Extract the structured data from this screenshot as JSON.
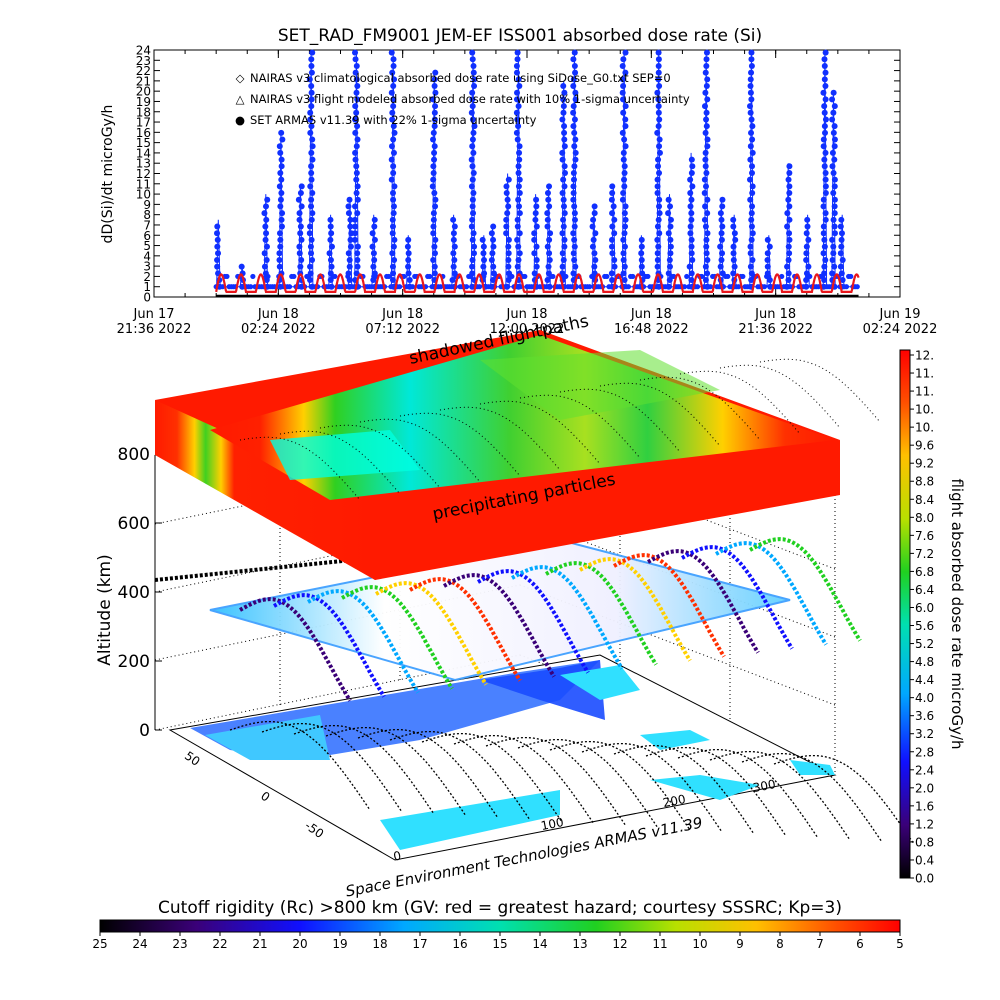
{
  "title": "SET_RAD_FM9001  JEM-EF ISS001 absorbed dose rate (Si)",
  "top_chart": {
    "ylabel": "dD(Si)/dt microGy/h",
    "yticks": [
      "0",
      "1",
      "2",
      "3",
      "4",
      "5",
      "6",
      "7",
      "8",
      "9",
      "10",
      "11",
      "12",
      "13",
      "14",
      "15",
      "16",
      "17",
      "18",
      "19",
      "20",
      "21",
      "22",
      "23",
      "24"
    ],
    "xtick_top": [
      "Jun 17",
      "Jun 18",
      "Jun 18",
      "Jun 18",
      "Jun 18",
      "Jun 18",
      "Jun 19"
    ],
    "xtick_bottom": [
      "21:36 2022",
      "02:24 2022",
      "07:12 2022",
      "12:00 2022",
      "16:48 2022",
      "21:36 2022",
      "02:24 2022"
    ],
    "legend": [
      {
        "symbol": "◇",
        "color": "#e8161c",
        "label": "NAIRAS v3 climatological absorbed dose rate using SiDose_G0.txt SEP=0"
      },
      {
        "symbol": "△",
        "color": "#000000",
        "label": "NAIRAS v3 flight modeled absorbed dose rate with 10% 1-sigma uncertainty"
      },
      {
        "symbol": "●",
        "color": "#1030ff",
        "label": "SET ARMAS v11.39 with 22% 1-sigma uncertainty"
      }
    ]
  },
  "chart_data": [
    {
      "type": "line",
      "title": "SET_RAD_FM9001  JEM-EF ISS001 absorbed dose rate (Si)",
      "xlabel": "",
      "ylabel": "dD(Si)/dt microGy/h",
      "xlim": [
        "2022-06-17 21:36",
        "2022-06-19 02:24"
      ],
      "ylim": [
        0,
        24
      ],
      "grid": false,
      "legend_position": "top-left",
      "x_data_start": "2022-06-18 00:00",
      "x_data_end": "2022-06-19 00:48",
      "series": [
        {
          "name": "SET ARMAS v11.39 with 22% 1-sigma uncertainty",
          "color": "#1030ff",
          "marker": "circle",
          "baseline": 1,
          "peaks": [
            {
              "t": "2022-06-18 00:05",
              "v": 7.5
            },
            {
              "t": "2022-06-18 01:00",
              "v": 3
            },
            {
              "t": "2022-06-18 01:55",
              "v": 10
            },
            {
              "t": "2022-06-18 02:30",
              "v": 16
            },
            {
              "t": "2022-06-18 03:15",
              "v": 11
            },
            {
              "t": "2022-06-18 03:40",
              "v": 24
            },
            {
              "t": "2022-06-18 04:25",
              "v": 8
            },
            {
              "t": "2022-06-18 05:10",
              "v": 9.5
            },
            {
              "t": "2022-06-18 05:25",
              "v": 24
            },
            {
              "t": "2022-06-18 06:05",
              "v": 8
            },
            {
              "t": "2022-06-18 06:50",
              "v": 24
            },
            {
              "t": "2022-06-18 07:25",
              "v": 6
            },
            {
              "t": "2022-06-18 08:25",
              "v": 22
            },
            {
              "t": "2022-06-18 09:10",
              "v": 8
            },
            {
              "t": "2022-06-18 09:55",
              "v": 24
            },
            {
              "t": "2022-06-18 10:20",
              "v": 6
            },
            {
              "t": "2022-06-18 10:40",
              "v": 7
            },
            {
              "t": "2022-06-18 11:15",
              "v": 12
            },
            {
              "t": "2022-06-18 11:40",
              "v": 24
            },
            {
              "t": "2022-06-18 12:20",
              "v": 10
            },
            {
              "t": "2022-06-18 12:50",
              "v": 11
            },
            {
              "t": "2022-06-18 13:25",
              "v": 21
            },
            {
              "t": "2022-06-18 13:50",
              "v": 24
            },
            {
              "t": "2022-06-18 14:35",
              "v": 9
            },
            {
              "t": "2022-06-18 15:20",
              "v": 11
            },
            {
              "t": "2022-06-18 15:45",
              "v": 24
            },
            {
              "t": "2022-06-18 16:25",
              "v": 6
            },
            {
              "t": "2022-06-18 17:05",
              "v": 24
            },
            {
              "t": "2022-06-18 17:30",
              "v": 10
            },
            {
              "t": "2022-06-18 18:20",
              "v": 14
            },
            {
              "t": "2022-06-18 18:55",
              "v": 24
            },
            {
              "t": "2022-06-18 19:30",
              "v": 9.5
            },
            {
              "t": "2022-06-18 20:00",
              "v": 8
            },
            {
              "t": "2022-06-18 20:40",
              "v": 24
            },
            {
              "t": "2022-06-18 21:20",
              "v": 6
            },
            {
              "t": "2022-06-18 22:05",
              "v": 13
            },
            {
              "t": "2022-06-18 22:50",
              "v": 8
            },
            {
              "t": "2022-06-18 23:30",
              "v": 24
            },
            {
              "t": "2022-06-18 23:50",
              "v": 20
            },
            {
              "t": "2022-06-19 00:10",
              "v": 8
            }
          ]
        },
        {
          "name": "NAIRAS v3 climatological absorbed dose rate using SiDose_G0.txt SEP=0",
          "color": "#e8161c",
          "marker": "diamond",
          "baseline": 0.5,
          "oscillation_peak": 2.2,
          "oscillation_period_min": 46
        },
        {
          "name": "NAIRAS v3 flight modeled absorbed dose rate with 10% 1-sigma uncertainty",
          "color": "#000000",
          "marker": "triangle",
          "baseline": 0.1
        }
      ]
    },
    {
      "type": "heatmap",
      "title": "",
      "xlabel": "",
      "ylabel": "Altitude (km)",
      "zlim": [
        0,
        800
      ],
      "zticks": [
        "0",
        "200",
        "400",
        "600",
        "800"
      ],
      "lon_ticks": [
        "0",
        "100",
        "200",
        "300"
      ],
      "lat_ticks": [
        "50",
        "0",
        "-50"
      ],
      "layers": [
        "precipitating particles",
        "shadowed flightpaths"
      ],
      "colorbar_label": "flight absorbed dose rate microGy/h",
      "colorbar_range": [
        0.0,
        12.0
      ],
      "colorbar_ticks": [
        "12.",
        "11.",
        "11.",
        "10.",
        "10.",
        "9.6",
        "9.2",
        "8.8",
        "8.4",
        "8.0",
        "7.6",
        "7.2",
        "6.8",
        "6.4",
        "6.0",
        "5.6",
        "5.2",
        "4.8",
        "4.4",
        "4.0",
        "3.6",
        "3.2",
        "2.8",
        "2.4",
        "2.0",
        "1.6",
        "1.2",
        "0.8",
        "0.4",
        "0.0"
      ]
    },
    {
      "type": "heatmap",
      "title": "Cutoff rigidity (Rc) >800 km (GV: red = greatest hazard; courtesy SSSRC; Kp=3)",
      "range": [
        25,
        5
      ],
      "ticks": [
        "25",
        "24",
        "23",
        "22",
        "21",
        "20",
        "19",
        "18",
        "17",
        "16",
        "15",
        "14",
        "13",
        "12",
        "11",
        "10",
        "9",
        "8",
        "7",
        "6",
        "5"
      ]
    }
  ],
  "labels_3d": {
    "precipitating": "precipitating particles",
    "shadowed": "shadowed flightpaths",
    "credit": "Space Environment Technologies ARMAS v11.39",
    "ylabel": "Altitude (km)",
    "cbar_label": "flight absorbed dose rate microGy/h",
    "bottom_title": "Cutoff rigidity (Rc) >800 km (GV: red = greatest hazard; courtesy SSSRC; Kp=3)"
  }
}
